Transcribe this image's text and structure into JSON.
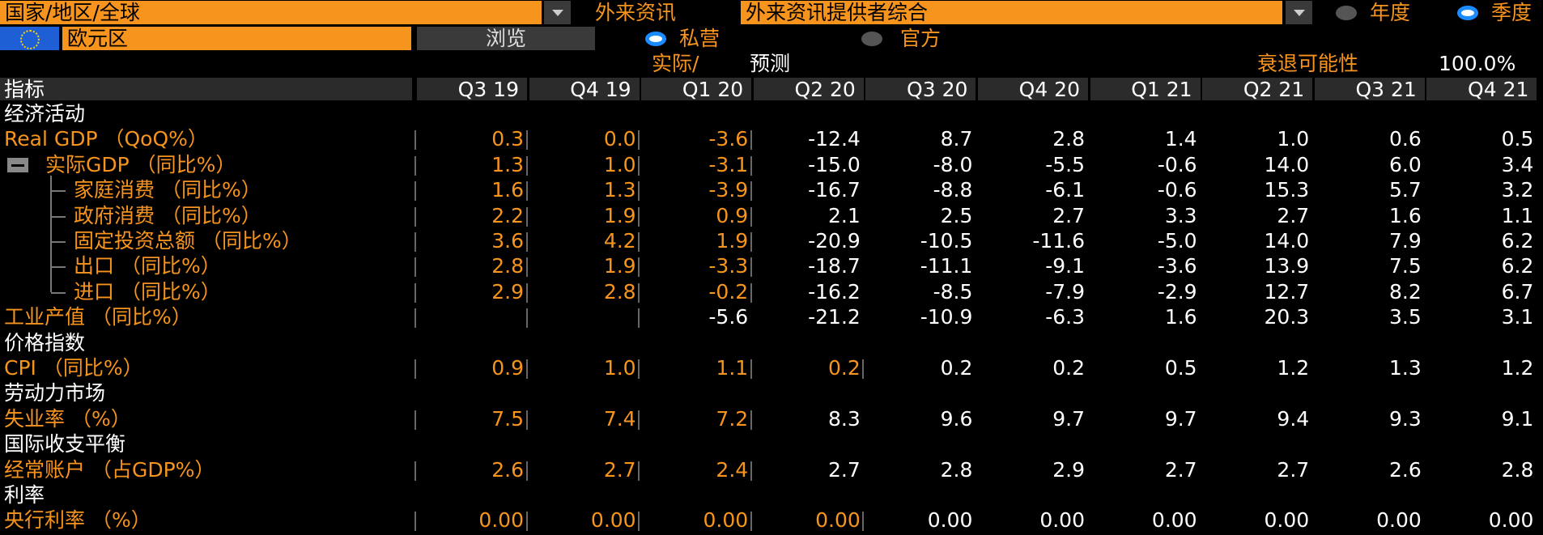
{
  "toolbar": {
    "region_field": "国家/地区/全球",
    "source_label": "外来资讯",
    "source_field": "外来资讯提供者综合",
    "radio_annual": "年度",
    "radio_quarterly": "季度",
    "area_field": "欧元区",
    "browse_button": "浏览",
    "radio_private": "私营",
    "radio_official": "官方",
    "actual_label": "实际/",
    "forecast_label": "预测",
    "recession_label": "衰退可能性",
    "recession_value": "100.0%"
  },
  "table": {
    "header": [
      "指标",
      "Q3 19",
      "Q4 19",
      "Q1 20",
      "Q2 20",
      "Q3 20",
      "Q4 20",
      "Q1 21",
      "Q2 21",
      "Q3 21",
      "Q4 21"
    ],
    "rows": [
      {
        "kind": "section",
        "label": "经济活动"
      },
      {
        "kind": "item",
        "label": "Real GDP （QoQ%）",
        "actual_columns": 3,
        "values": [
          "0.3",
          "0.0",
          "-3.6",
          "-12.4",
          "8.7",
          "2.8",
          "1.4",
          "1.0",
          "0.6",
          "0.5"
        ]
      },
      {
        "kind": "parent",
        "label": "实际GDP （同比%）",
        "actual_columns": 3,
        "values": [
          "1.3",
          "1.0",
          "-3.1",
          "-15.0",
          "-8.0",
          "-5.5",
          "-0.6",
          "14.0",
          "6.0",
          "3.4"
        ]
      },
      {
        "kind": "child",
        "label": "家庭消费 （同比%）",
        "actual_columns": 3,
        "values": [
          "1.6",
          "1.3",
          "-3.9",
          "-16.7",
          "-8.8",
          "-6.1",
          "-0.6",
          "15.3",
          "5.7",
          "3.2"
        ]
      },
      {
        "kind": "child",
        "label": "政府消费 （同比%）",
        "actual_columns": 3,
        "values": [
          "2.2",
          "1.9",
          "0.9",
          "2.1",
          "2.5",
          "2.7",
          "3.3",
          "2.7",
          "1.6",
          "1.1"
        ]
      },
      {
        "kind": "child",
        "label": "固定投资总额 （同比%）",
        "actual_columns": 3,
        "values": [
          "3.6",
          "4.2",
          "1.9",
          "-20.9",
          "-10.5",
          "-11.6",
          "-5.0",
          "14.0",
          "7.9",
          "6.2"
        ]
      },
      {
        "kind": "child",
        "label": "出口 （同比%）",
        "actual_columns": 3,
        "values": [
          "2.8",
          "1.9",
          "-3.3",
          "-18.7",
          "-11.1",
          "-9.1",
          "-3.6",
          "13.9",
          "7.5",
          "6.2"
        ]
      },
      {
        "kind": "child",
        "label": "进口 （同比%）",
        "actual_columns": 3,
        "values": [
          "2.9",
          "2.8",
          "-0.2",
          "-16.2",
          "-8.5",
          "-7.9",
          "-2.9",
          "12.7",
          "8.2",
          "6.7"
        ]
      },
      {
        "kind": "item",
        "label": "工业产值 （同比%）",
        "actual_columns": 2,
        "values": [
          null,
          null,
          "-5.6",
          "-21.2",
          "-10.9",
          "-6.3",
          "1.6",
          "20.3",
          "3.5",
          "3.1"
        ]
      },
      {
        "kind": "section",
        "label": "价格指数"
      },
      {
        "kind": "item",
        "label": "CPI （同比%）",
        "actual_columns": 4,
        "values": [
          "0.9",
          "1.0",
          "1.1",
          "0.2",
          "0.2",
          "0.2",
          "0.5",
          "1.2",
          "1.3",
          "1.2"
        ]
      },
      {
        "kind": "section",
        "label": "劳动力市场"
      },
      {
        "kind": "item",
        "label": "失业率 （%）",
        "actual_columns": 3,
        "values": [
          "7.5",
          "7.4",
          "7.2",
          "8.3",
          "9.6",
          "9.7",
          "9.7",
          "9.4",
          "9.3",
          "9.1"
        ]
      },
      {
        "kind": "section",
        "label": "国际收支平衡"
      },
      {
        "kind": "item",
        "label": "经常账户 （占GDP%）",
        "actual_columns": 3,
        "values": [
          "2.6",
          "2.7",
          "2.4",
          "2.7",
          "2.8",
          "2.9",
          "2.7",
          "2.7",
          "2.6",
          "2.8"
        ]
      },
      {
        "kind": "section",
        "label": "利率"
      },
      {
        "kind": "item",
        "label": "央行利率 （%）",
        "actual_columns": 4,
        "values": [
          "0.00",
          "0.00",
          "0.00",
          "0.00",
          "0.00",
          "0.00",
          "0.00",
          "0.00",
          "0.00",
          "0.00"
        ]
      }
    ]
  }
}
